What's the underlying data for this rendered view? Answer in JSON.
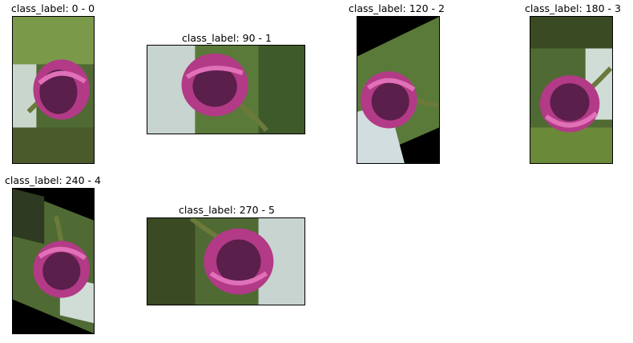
{
  "panels": [
    {
      "title": "class_label: 0 - 0",
      "angle": 0
    },
    {
      "title": "class_label: 90 - 1",
      "angle": 90
    },
    {
      "title": "class_label: 120 - 2",
      "angle": 120
    },
    {
      "title": "class_label: 180 - 3",
      "angle": 180
    },
    {
      "title": "class_label: 240 - 4",
      "angle": 240
    },
    {
      "title": "class_label: 270 - 5",
      "angle": 270
    }
  ]
}
